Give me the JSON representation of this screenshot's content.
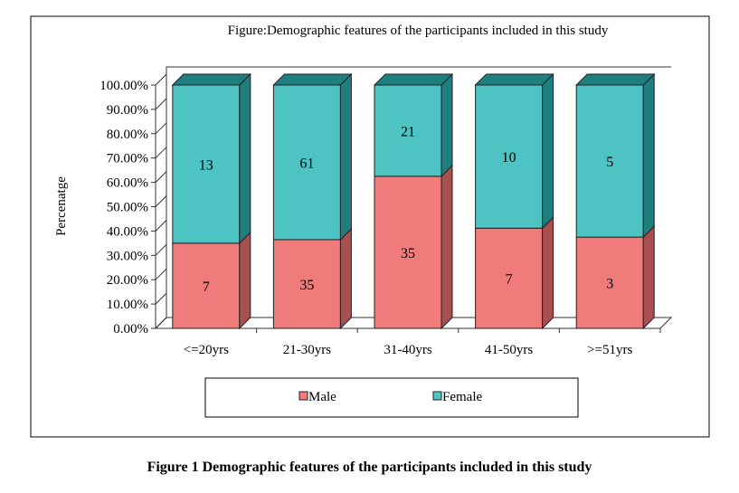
{
  "chart_data": {
    "type": "bar",
    "stacked": "100%",
    "title": "Figure:Demographic  features of the participants  included  in this  study",
    "xlabel": "",
    "ylabel": "Percenatge",
    "ylim": [
      0,
      100
    ],
    "yticks": [
      "0.00%",
      "10.00%",
      "20.00%",
      "30.00%",
      "40.00%",
      "50.00%",
      "60.00%",
      "70.00%",
      "80.00%",
      "90.00%",
      "100.00%"
    ],
    "categories": [
      "<=20yrs",
      "21-30yrs",
      "31-40yrs",
      "41-50yrs",
      ">=51yrs"
    ],
    "series": [
      {
        "name": "Male",
        "values": [
          7,
          35,
          35,
          7,
          3
        ],
        "color": "#f07b7b",
        "side": "#a84f4f"
      },
      {
        "name": "Female",
        "values": [
          13,
          61,
          21,
          10,
          5
        ],
        "color": "#4dc3c3",
        "side": "#1f7f7f"
      }
    ],
    "legend": "bottom"
  },
  "caption": "Figure 1 Demographic features of the participants included in this study"
}
